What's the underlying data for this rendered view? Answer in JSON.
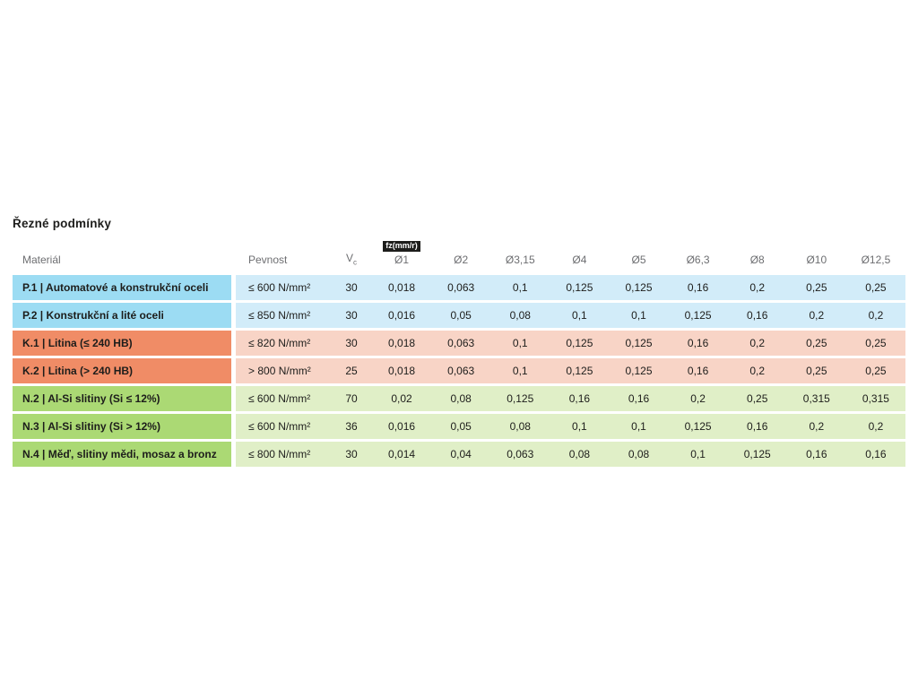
{
  "page": {
    "title": "Řezné podmínky"
  },
  "colors": {
    "steel_label_bg": "#9cdcf3",
    "steel_row_bg": "#d2ecf9",
    "castiron_label_bg": "#f08c66",
    "castiron_row_bg": "#f8d4c6",
    "nonferrous_label_bg": "#abd974",
    "nonferrous_row_bg": "#e0efc7",
    "badge_bg": "#1d1d1b",
    "header_text": "#6d6e71",
    "body_text": "#1d1d1b"
  },
  "table": {
    "headers": {
      "material": "Materiál",
      "strength": "Pevnost",
      "vc_main": "V",
      "vc_sub": "c",
      "fz_badge": "fz(mm/r)",
      "diameters": [
        "Ø1",
        "Ø2",
        "Ø3,15",
        "Ø4",
        "Ø5",
        "Ø6,3",
        "Ø8",
        "Ø10",
        "Ø12,5"
      ]
    },
    "rows": [
      {
        "group": "P",
        "material": "P.1 | Automatové a konstrukční oceli",
        "strength": "≤ 600 N/mm²",
        "vc": "30",
        "values": [
          "0,018",
          "0,063",
          "0,1",
          "0,125",
          "0,125",
          "0,16",
          "0,2",
          "0,25",
          "0,25"
        ]
      },
      {
        "group": "P",
        "material": "P.2 | Konstrukční a lité oceli",
        "strength": "≤ 850 N/mm²",
        "vc": "30",
        "values": [
          "0,016",
          "0,05",
          "0,08",
          "0,1",
          "0,1",
          "0,125",
          "0,16",
          "0,2",
          "0,2"
        ]
      },
      {
        "group": "K",
        "material": "K.1 | Litina (≤ 240 HB)",
        "strength": "≤ 820 N/mm²",
        "vc": "30",
        "values": [
          "0,018",
          "0,063",
          "0,1",
          "0,125",
          "0,125",
          "0,16",
          "0,2",
          "0,25",
          "0,25"
        ]
      },
      {
        "group": "K",
        "material": "K.2 | Litina (> 240 HB)",
        "strength": "> 800 N/mm²",
        "vc": "25",
        "values": [
          "0,018",
          "0,063",
          "0,1",
          "0,125",
          "0,125",
          "0,16",
          "0,2",
          "0,25",
          "0,25"
        ]
      },
      {
        "group": "N",
        "material": "N.2 | Al-Si slitiny (Si ≤ 12%)",
        "strength": "≤ 600 N/mm²",
        "vc": "70",
        "values": [
          "0,02",
          "0,08",
          "0,125",
          "0,16",
          "0,16",
          "0,2",
          "0,25",
          "0,315",
          "0,315"
        ]
      },
      {
        "group": "N",
        "material": "N.3 | Al-Si slitiny (Si > 12%)",
        "strength": "≤ 600 N/mm²",
        "vc": "36",
        "values": [
          "0,016",
          "0,05",
          "0,08",
          "0,1",
          "0,1",
          "0,125",
          "0,16",
          "0,2",
          "0,2"
        ]
      },
      {
        "group": "N",
        "material": "N.4 | Měď, slitiny mědi, mosaz a bronz",
        "strength": "≤ 800 N/mm²",
        "vc": "30",
        "values": [
          "0,014",
          "0,04",
          "0,063",
          "0,08",
          "0,08",
          "0,1",
          "0,125",
          "0,16",
          "0,16"
        ]
      }
    ]
  }
}
